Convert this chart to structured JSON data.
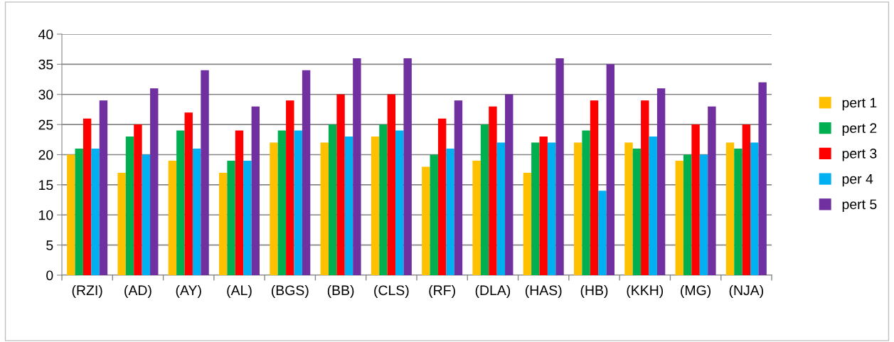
{
  "chart_data": {
    "type": "bar",
    "categories": [
      "(RZI)",
      "(AD)",
      "(AY)",
      "(AL)",
      "(BGS)",
      "(BB)",
      "(CLS)",
      "(RF)",
      "(DLA)",
      "(HAS)",
      "(HB)",
      "(KKH)",
      "(MG)",
      "(NJA)"
    ],
    "series": [
      {
        "name": "pert 1",
        "color": "#ffc000",
        "values": [
          20,
          17,
          19,
          17,
          22,
          22,
          23,
          18,
          19,
          17,
          22,
          22,
          19,
          22
        ]
      },
      {
        "name": "pert 2",
        "color": "#00b050",
        "values": [
          21,
          23,
          24,
          19,
          24,
          25,
          25,
          20,
          25,
          22,
          24,
          21,
          20,
          21
        ]
      },
      {
        "name": "pert 3",
        "color": "#ff0000",
        "values": [
          26,
          25,
          27,
          24,
          29,
          30,
          30,
          26,
          28,
          23,
          29,
          29,
          25,
          25
        ]
      },
      {
        "name": "per 4",
        "color": "#00b0f0",
        "values": [
          21,
          20,
          21,
          19,
          24,
          23,
          24,
          21,
          22,
          22,
          14,
          23,
          20,
          22
        ]
      },
      {
        "name": "pert 5",
        "color": "#7030a0",
        "values": [
          29,
          31,
          34,
          28,
          34,
          36,
          36,
          29,
          30,
          36,
          35,
          31,
          28,
          32
        ]
      }
    ],
    "ylim": [
      0,
      40
    ],
    "yticks": [
      0,
      5,
      10,
      15,
      20,
      25,
      30,
      35,
      40
    ],
    "grid": "y",
    "legend": "right"
  }
}
